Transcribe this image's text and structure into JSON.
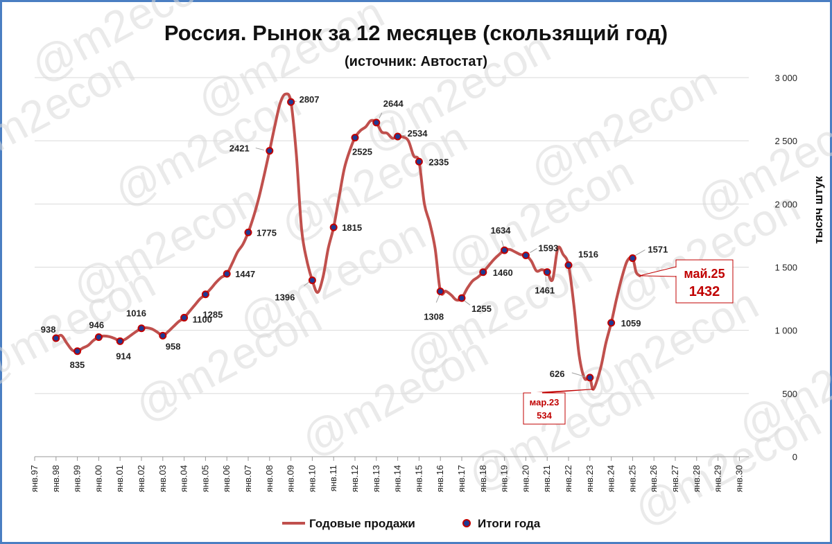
{
  "title": "Россия. Рынок за 12 месяцев (скользящий год)",
  "subtitle": "(источник: Автостат)",
  "watermark": "@m2econ",
  "colors": {
    "line": "#c0504d",
    "marker_fill": "#1f3a93",
    "marker_stroke": "#c00000",
    "callout": "#c00000",
    "frame": "#4a7ec2",
    "grid": "#d9d9d9"
  },
  "legend": {
    "line_label": "Годовые продажи",
    "marker_label": "Итоги года",
    "position": "bottom"
  },
  "chart_data": {
    "type": "line",
    "ylabel": "тысяч штук",
    "ylim": [
      0,
      3000
    ],
    "yticks": [
      "0",
      "500",
      "1 000",
      "1 500",
      "2 000",
      "2 500",
      "3 000"
    ],
    "y_axis_position": "right",
    "grid": true,
    "xticks": [
      "янв.97",
      "янв.98",
      "янв.99",
      "янв.00",
      "янв.01",
      "янв.02",
      "янв.03",
      "янв.04",
      "янв.05",
      "янв.06",
      "янв.07",
      "янв.08",
      "янв.09",
      "янв.10",
      "янв.11",
      "янв.12",
      "янв.13",
      "янв.14",
      "янв.15",
      "янв.16",
      "янв.17",
      "янв.18",
      "янв.19",
      "янв.20",
      "янв.21",
      "янв.22",
      "янв.23",
      "янв.24",
      "янв.25",
      "янв.26",
      "янв.27",
      "янв.28",
      "янв.29",
      "янв.30"
    ],
    "series": [
      {
        "name": "Годовые продажи",
        "x": [
          "1998-01",
          "1998-04",
          "1998-07",
          "1998-10",
          "1999-01",
          "1999-04",
          "1999-07",
          "1999-10",
          "2000-01",
          "2000-04",
          "2000-07",
          "2000-10",
          "2001-01",
          "2001-04",
          "2001-07",
          "2001-10",
          "2002-01",
          "2002-04",
          "2002-07",
          "2002-10",
          "2003-01",
          "2003-04",
          "2003-07",
          "2003-10",
          "2004-01",
          "2004-04",
          "2004-07",
          "2004-10",
          "2005-01",
          "2005-04",
          "2005-07",
          "2005-10",
          "2006-01",
          "2006-04",
          "2006-07",
          "2006-10",
          "2007-01",
          "2007-04",
          "2007-07",
          "2007-10",
          "2008-01",
          "2008-04",
          "2008-07",
          "2008-10",
          "2009-01",
          "2009-04",
          "2009-07",
          "2009-10",
          "2010-01",
          "2010-04",
          "2010-07",
          "2010-10",
          "2011-01",
          "2011-04",
          "2011-07",
          "2011-10",
          "2012-01",
          "2012-04",
          "2012-07",
          "2012-10",
          "2013-01",
          "2013-04",
          "2013-07",
          "2013-10",
          "2014-01",
          "2014-04",
          "2014-07",
          "2014-10",
          "2015-01",
          "2015-04",
          "2015-07",
          "2015-10",
          "2016-01",
          "2016-04",
          "2016-07",
          "2016-10",
          "2017-01",
          "2017-04",
          "2017-07",
          "2017-10",
          "2018-01",
          "2018-04",
          "2018-07",
          "2018-10",
          "2019-01",
          "2019-04",
          "2019-07",
          "2019-10",
          "2020-01",
          "2020-04",
          "2020-07",
          "2020-10",
          "2021-01",
          "2021-04",
          "2021-07",
          "2021-10",
          "2022-01",
          "2022-04",
          "2022-07",
          "2022-10",
          "2023-01",
          "2023-03",
          "2023-07",
          "2023-10",
          "2024-01",
          "2024-04",
          "2024-07",
          "2024-10",
          "2025-01",
          "2025-03",
          "2025-05"
        ],
        "values": [
          938,
          960,
          900,
          845,
          835,
          860,
          880,
          920,
          946,
          955,
          950,
          935,
          914,
          930,
          960,
          990,
          1016,
          1020,
          1010,
          985,
          958,
          990,
          1030,
          1070,
          1100,
          1150,
          1200,
          1250,
          1285,
          1330,
          1380,
          1420,
          1447,
          1530,
          1620,
          1680,
          1775,
          1900,
          2050,
          2230,
          2421,
          2620,
          2800,
          2870,
          2807,
          2400,
          1800,
          1550,
          1396,
          1300,
          1420,
          1650,
          1815,
          2050,
          2280,
          2420,
          2525,
          2580,
          2610,
          2660,
          2644,
          2570,
          2560,
          2520,
          2534,
          2530,
          2500,
          2380,
          2335,
          2000,
          1850,
          1650,
          1308,
          1310,
          1280,
          1240,
          1255,
          1330,
          1390,
          1420,
          1460,
          1510,
          1560,
          1600,
          1634,
          1640,
          1620,
          1600,
          1593,
          1550,
          1470,
          1480,
          1461,
          1400,
          1650,
          1600,
          1516,
          1200,
          800,
          620,
          626,
          534,
          700,
          900,
          1059,
          1250,
          1420,
          1550,
          1571,
          1460,
          1432
        ]
      },
      {
        "name": "Итоги года",
        "x": [
          "1998-01",
          "1999-01",
          "2000-01",
          "2001-01",
          "2002-01",
          "2003-01",
          "2004-01",
          "2005-01",
          "2006-01",
          "2007-01",
          "2008-01",
          "2009-01",
          "2010-01",
          "2011-01",
          "2012-01",
          "2013-01",
          "2014-01",
          "2015-01",
          "2016-01",
          "2017-01",
          "2018-01",
          "2019-01",
          "2020-01",
          "2021-01",
          "2022-01",
          "2023-01",
          "2024-01",
          "2025-01"
        ],
        "values": [
          938,
          835,
          946,
          914,
          1016,
          958,
          1100,
          1285,
          1447,
          1775,
          2421,
          2807,
          1396,
          1815,
          2525,
          2644,
          2534,
          2335,
          1308,
          1255,
          1460,
          1634,
          1593,
          1461,
          1516,
          626,
          1059,
          1571
        ],
        "labels": [
          "938",
          "835",
          "946",
          "914",
          "1016",
          "958",
          "1100",
          "1285",
          "1447",
          "1775",
          "2421",
          "2807",
          "1396",
          "1815",
          "2525",
          "2644",
          "2534",
          "2335",
          "1308",
          "1255",
          "1460",
          "1634",
          "1593",
          "1461",
          "1516",
          "626",
          "1059",
          "1571"
        ]
      }
    ],
    "annotations": [
      {
        "id": "min",
        "x": "2023-03",
        "value": 534,
        "lines": [
          "мар.23",
          "534"
        ]
      },
      {
        "id": "last",
        "x": "2025-05",
        "value": 1432,
        "lines": [
          "май.25",
          "1432"
        ]
      }
    ]
  }
}
